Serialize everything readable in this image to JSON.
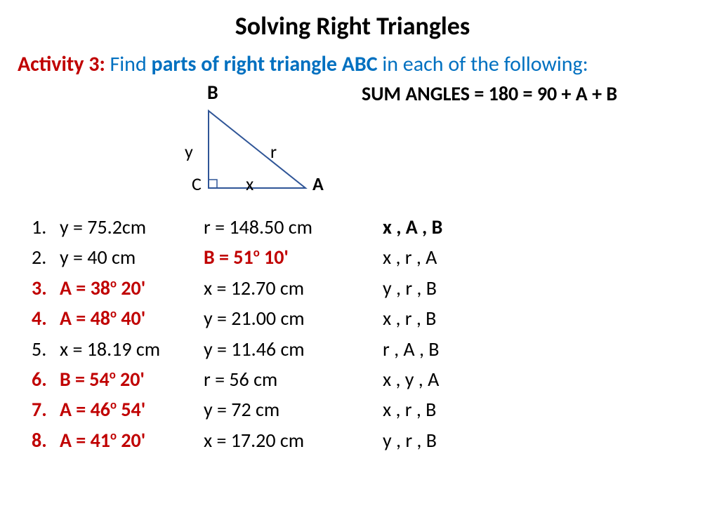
{
  "title": "Solving Right Triangles",
  "activity": {
    "label": "Activity 3:",
    "prefix": " Find ",
    "bold_part": "parts of right triangle ABC",
    "suffix": " in each of the following:"
  },
  "diagram": {
    "B": "B",
    "y": "y",
    "r": "r",
    "C": "C",
    "x": "x",
    "A": "A",
    "stroke": "#2f5597",
    "stroke_width": 2
  },
  "sum_angles": "SUM ANGLES = 180 = 90 + A + B",
  "problems": [
    {
      "num": "1.",
      "num_red": false,
      "c1": "y = 75.2cm",
      "c1_red": false,
      "c2": "r = 148.50 cm",
      "c2_red": false,
      "c3": "x , A , B",
      "c3_bold": true
    },
    {
      "num": "2.",
      "num_red": false,
      "c1": "y = 40 cm",
      "c1_red": false,
      "c2_html": "B = 51<sup>o</sup> 10'",
      "c2_red": true,
      "c3": "x , r , A",
      "c3_bold": false
    },
    {
      "num": "3.",
      "num_red": true,
      "c1_html": "A = 38<sup>o</sup> 20'",
      "c1_red": true,
      "c2": "x = 12.70 cm",
      "c2_red": false,
      "c3": "y , r , B",
      "c3_bold": false
    },
    {
      "num": "4.",
      "num_red": true,
      "c1_html": "A = 48<sup>o</sup> 40'",
      "c1_red": true,
      "c2": "y = 21.00 cm",
      "c2_red": false,
      "c3": "x , r , B",
      "c3_bold": false
    },
    {
      "num": "5.",
      "num_red": false,
      "c1": "x = 18.19 cm",
      "c1_red": false,
      "c2": "y = 11.46 cm",
      "c2_red": false,
      "c3": "r , A , B",
      "c3_bold": false
    },
    {
      "num": "6.",
      "num_red": true,
      "c1_html": "B = 54<sup>o</sup> 20'",
      "c1_red": true,
      "c2": "r = 56 cm",
      "c2_red": false,
      "c3": "x , y , A",
      "c3_bold": false
    },
    {
      "num": "7.",
      "num_red": true,
      "c1_html": "A = 46<sup>o</sup> 54'",
      "c1_red": true,
      "c2": "y = 72 cm",
      "c2_red": false,
      "c3": "x , r , B",
      "c3_bold": false
    },
    {
      "num": "8.",
      "num_red": true,
      "c1_html": "A = 41<sup>o</sup> 20'",
      "c1_red": true,
      "c2": "x = 17.20 cm",
      "c2_red": false,
      "c3": "y , r , B",
      "c3_bold": false
    }
  ]
}
